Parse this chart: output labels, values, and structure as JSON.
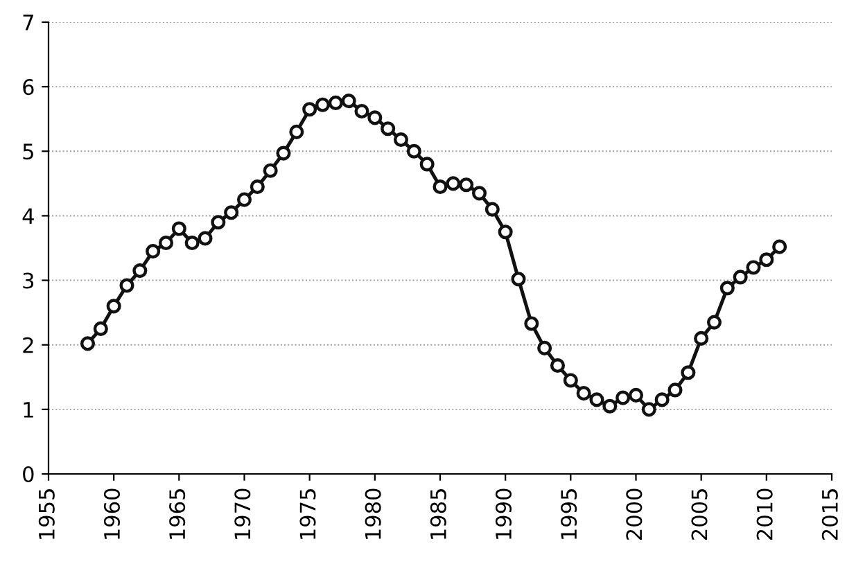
{
  "chart_data": {
    "type": "line",
    "x": [
      1958,
      1959,
      1960,
      1961,
      1962,
      1963,
      1964,
      1965,
      1966,
      1967,
      1968,
      1969,
      1970,
      1971,
      1972,
      1973,
      1974,
      1975,
      1976,
      1977,
      1978,
      1979,
      1980,
      1981,
      1982,
      1983,
      1984,
      1985,
      1986,
      1987,
      1988,
      1989,
      1990,
      1991,
      1992,
      1993,
      1994,
      1995,
      1996,
      1997,
      1998,
      1999,
      2000,
      2001,
      2002,
      2003,
      2004,
      2005,
      2006,
      2007,
      2008,
      2009,
      2010,
      2011
    ],
    "series": [
      {
        "color": "#111111",
        "values": [
          2.02,
          2.25,
          2.6,
          2.92,
          3.15,
          3.45,
          3.58,
          3.8,
          3.58,
          3.65,
          3.9,
          4.05,
          4.25,
          4.45,
          4.7,
          4.97,
          5.3,
          5.65,
          5.72,
          5.75,
          5.78,
          5.62,
          5.52,
          5.35,
          5.18,
          5.0,
          4.8,
          4.45,
          4.5,
          4.48,
          4.35,
          4.1,
          3.75,
          3.02,
          2.33,
          1.95,
          1.68,
          1.45,
          1.25,
          1.15,
          1.05,
          1.18,
          1.22,
          1.0,
          1.15,
          1.3,
          1.57,
          2.1,
          2.35,
          2.88,
          3.05,
          3.2,
          3.32,
          3.52
        ]
      }
    ],
    "xlim": [
      1955,
      2015
    ],
    "xticks": [
      1955,
      1960,
      1965,
      1970,
      1975,
      1980,
      1985,
      1990,
      1995,
      2000,
      2005,
      2010,
      2015
    ],
    "ylim": [
      0,
      7
    ],
    "yticks": [
      0,
      1,
      2,
      3,
      4,
      5,
      6,
      7
    ],
    "grid": "y",
    "marker": "circle",
    "line_style": "solid"
  }
}
